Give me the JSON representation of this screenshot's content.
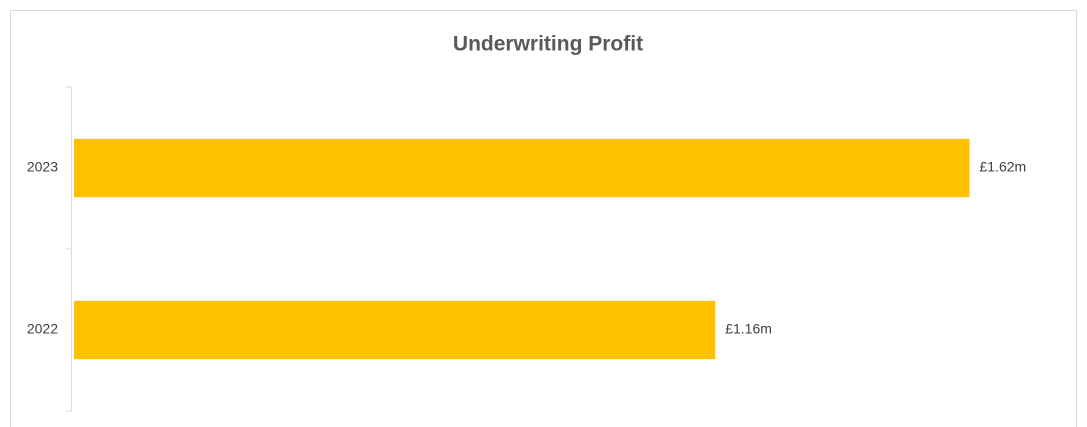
{
  "chart_data": {
    "type": "bar",
    "orientation": "horizontal",
    "title": "Underwriting Profit",
    "categories": [
      "2023",
      "2022"
    ],
    "values": [
      1.62,
      1.16
    ],
    "value_labels": [
      "£1.62m",
      "£1.16m"
    ],
    "color": "#ffc000",
    "xlim": [
      0,
      1.8
    ],
    "grid": false
  }
}
